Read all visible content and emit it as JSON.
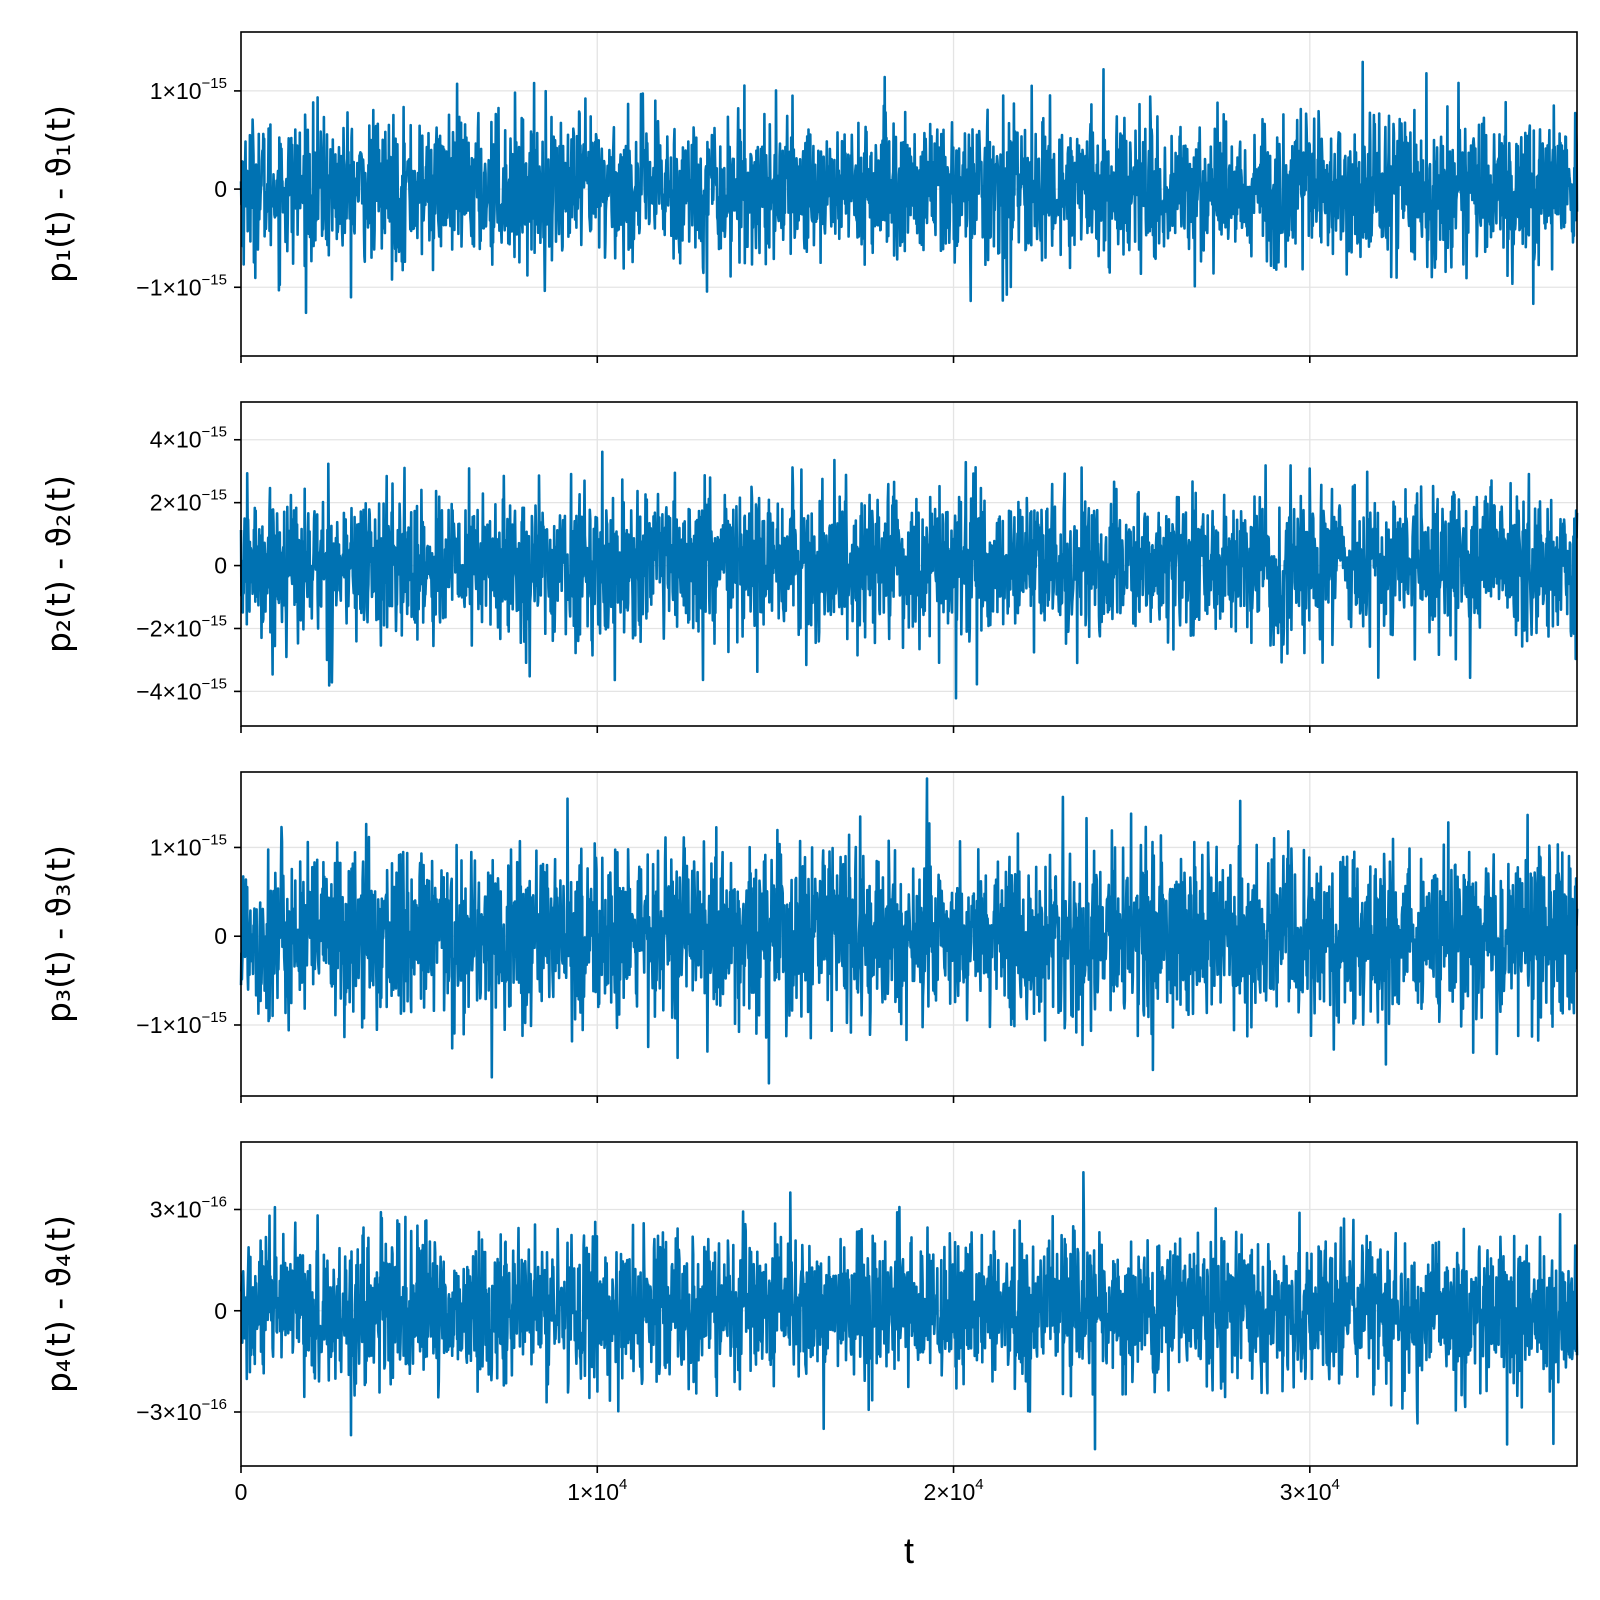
{
  "chart_data": [
    {
      "type": "line",
      "ylabel": "p₁(t) - ϑ₁(t)",
      "series_color": "#0072b2",
      "xlim": [
        0,
        37500
      ],
      "ylim": [
        -1.7e-15,
        1.6e-15
      ],
      "amplitude": 3.6e-16,
      "yticks": [
        {
          "value": 1e-15,
          "label": "1×10",
          "exp": "−15"
        },
        {
          "value": 0,
          "label": "0",
          "exp": ""
        },
        {
          "value": -1e-15,
          "label": "−1×10",
          "exp": "−15"
        }
      ]
    },
    {
      "type": "line",
      "ylabel": "p₂(t) - ϑ₂(t)",
      "series_color": "#0072b2",
      "xlim": [
        0,
        37500
      ],
      "ylim": [
        -5.1e-15,
        5.2e-15
      ],
      "amplitude": 1.15e-15,
      "yticks": [
        {
          "value": 4e-15,
          "label": "4×10",
          "exp": "−15"
        },
        {
          "value": 2e-15,
          "label": "2×10",
          "exp": "−15"
        },
        {
          "value": 0,
          "label": "0",
          "exp": ""
        },
        {
          "value": -2e-15,
          "label": "−2×10",
          "exp": "−15"
        },
        {
          "value": -4e-15,
          "label": "−4×10",
          "exp": "−15"
        }
      ]
    },
    {
      "type": "line",
      "ylabel": "p₃(t) - ϑ₃(t)",
      "series_color": "#0072b2",
      "xlim": [
        0,
        37500
      ],
      "ylim": [
        -1.8e-15,
        1.85e-15
      ],
      "amplitude": 4.8e-16,
      "yticks": [
        {
          "value": 1e-15,
          "label": "1×10",
          "exp": "−15"
        },
        {
          "value": 0,
          "label": "0",
          "exp": ""
        },
        {
          "value": -1e-15,
          "label": "−1×10",
          "exp": "−15"
        }
      ]
    },
    {
      "type": "line",
      "ylabel": "p₄(t) - ϑ₄(t)",
      "series_color": "#0072b2",
      "xlim": [
        0,
        37500
      ],
      "ylim": [
        -4.6e-16,
        5e-16
      ],
      "amplitude": 1.1e-16,
      "xlabel": "t",
      "xticks": [
        {
          "value": 0,
          "label": "0",
          "exp": ""
        },
        {
          "value": 10000,
          "label": "1×10",
          "exp": "4"
        },
        {
          "value": 20000,
          "label": "2×10",
          "exp": "4"
        },
        {
          "value": 30000,
          "label": "3×10",
          "exp": "4"
        }
      ],
      "yticks": [
        {
          "value": 3e-16,
          "label": "3×10",
          "exp": "−16"
        },
        {
          "value": 0,
          "label": "0",
          "exp": ""
        },
        {
          "value": -3e-16,
          "label": "−3×10",
          "exp": "−16"
        }
      ]
    }
  ]
}
